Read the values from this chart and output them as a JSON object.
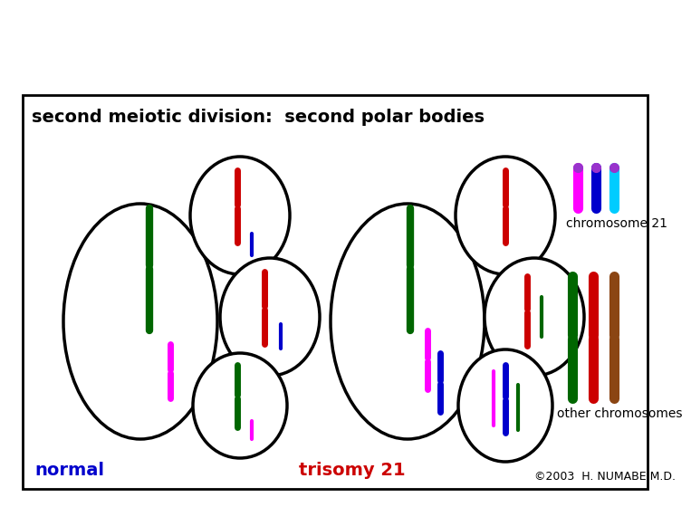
{
  "title": "second meiotic division:  second polar bodies",
  "title_fontsize": 14,
  "normal_label": "normal",
  "trisomy_label": "trisomy 21",
  "chr21_label": "chromosome 21",
  "other_label": "other chromosomes",
  "copyright": "©2003  H. NUMABE M.D.",
  "bg_color": "#ffffff",
  "box_color": "#000000",
  "normal_label_color": "#0000cc",
  "trisomy_label_color": "#cc0000",
  "legend_chr21_colors": [
    "#ff00ff",
    "#0000cc",
    "#00ccff"
  ],
  "legend_chr21_dot_color": "#9933cc",
  "legend_other_colors": [
    "#006600",
    "#cc0000",
    "#8B4513"
  ]
}
